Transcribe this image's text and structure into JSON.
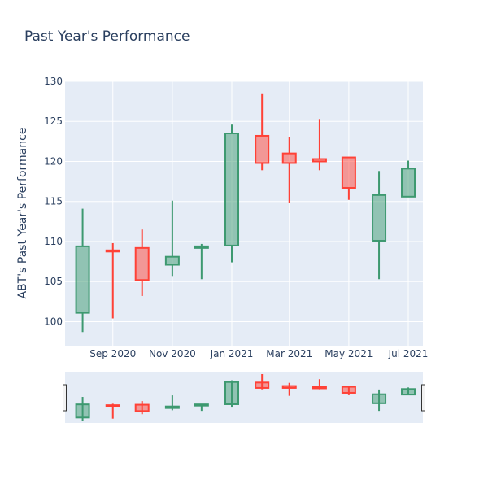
{
  "chart_data": {
    "type": "candlestick",
    "title": "Past Year's Performance",
    "xlabel": "",
    "ylabel": "ABT's Past Year's Performance",
    "ylim": [
      97,
      130
    ],
    "y_ticks": [
      100,
      105,
      110,
      115,
      120,
      125,
      130
    ],
    "x_range": [
      "2020-07-14",
      "2021-07-16"
    ],
    "x_ticks": [
      {
        "date": "2020-09-01",
        "label": "Sep 2020"
      },
      {
        "date": "2020-11-01",
        "label": "Nov 2020"
      },
      {
        "date": "2021-01-01",
        "label": "Jan 2021"
      },
      {
        "date": "2021-03-01",
        "label": "Mar 2021"
      },
      {
        "date": "2021-05-01",
        "label": "May 2021"
      },
      {
        "date": "2021-07-01",
        "label": "Jul 2021"
      }
    ],
    "increasing_color": "#3d9970",
    "decreasing_color": "#ff4136",
    "grid": true,
    "rangeslider": true,
    "candles": [
      {
        "date": "2020-08-01",
        "open": 101.1,
        "high": 114.1,
        "low": 98.7,
        "close": 109.4
      },
      {
        "date": "2020-09-01",
        "open": 108.9,
        "high": 109.8,
        "low": 100.4,
        "close": 108.8
      },
      {
        "date": "2020-10-01",
        "open": 109.2,
        "high": 111.5,
        "low": 103.2,
        "close": 105.2
      },
      {
        "date": "2020-11-01",
        "open": 107.1,
        "high": 115.1,
        "low": 105.7,
        "close": 108.1
      },
      {
        "date": "2020-12-01",
        "open": 109.2,
        "high": 109.7,
        "low": 105.3,
        "close": 109.4
      },
      {
        "date": "2021-01-01",
        "open": 109.5,
        "high": 124.6,
        "low": 107.4,
        "close": 123.5
      },
      {
        "date": "2021-02-01",
        "open": 123.2,
        "high": 128.5,
        "low": 118.9,
        "close": 119.8
      },
      {
        "date": "2021-03-01",
        "open": 121.0,
        "high": 123.0,
        "low": 114.8,
        "close": 119.8
      },
      {
        "date": "2021-04-01",
        "open": 120.3,
        "high": 125.3,
        "low": 118.9,
        "close": 120.0
      },
      {
        "date": "2021-05-01",
        "open": 120.5,
        "high": 120.5,
        "low": 115.2,
        "close": 116.7
      },
      {
        "date": "2021-06-01",
        "open": 110.1,
        "high": 118.8,
        "low": 105.3,
        "close": 115.8
      },
      {
        "date": "2021-07-01",
        "open": 115.6,
        "high": 120.1,
        "low": 115.6,
        "close": 119.1
      }
    ]
  }
}
